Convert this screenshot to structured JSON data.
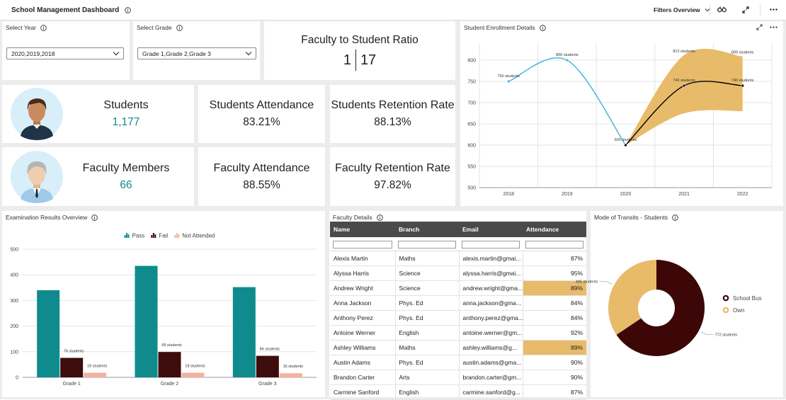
{
  "header": {
    "title": "School Management Dashboard",
    "filters_button": "Filters Overview"
  },
  "filters": [
    {
      "label": "Select Year",
      "value": "2020,2019,2018"
    },
    {
      "label": "Select Grade",
      "value": "Grade 1,Grade 2,Grade 3"
    }
  ],
  "ratio": {
    "title": "Faculty to Student Ratio",
    "left": 1,
    "right": 17
  },
  "kpis": [
    {
      "title": "Students",
      "value": "1,177"
    },
    {
      "title": "Students Attendance",
      "value": "83.21%"
    },
    {
      "title": "Students Retention Rate",
      "value": "88.13%"
    },
    {
      "title": "Faculty Members",
      "value": "66"
    },
    {
      "title": "Faculty Attendance",
      "value": "88.55%"
    },
    {
      "title": "Faculty Retention Rate",
      "value": "97.82%"
    }
  ],
  "table": {
    "title": "Faculty Details",
    "columns": [
      "Name",
      "Branch",
      "Email",
      "Attendance"
    ],
    "rows": [
      [
        "Alexis Martin",
        "Maths",
        "alexis.martin@gmai...",
        "87%"
      ],
      [
        "Alyssa Harris",
        "Science",
        "alyssa.harris@gmai...",
        "95%"
      ],
      [
        "Andrew Wright",
        "Science",
        "andrew.wright@gma...",
        "89%"
      ],
      [
        "Anna Jackson",
        "Phys. Ed",
        "anna.jackson@gma...",
        "84%"
      ],
      [
        "Anthony Perez",
        "Phys. Ed",
        "anthony.perez@gma...",
        "84%"
      ],
      [
        "Antoine Werner",
        "English",
        "antoine.werner@gm...",
        "92%"
      ],
      [
        "Ashley Williams",
        "Maths",
        "ashley.williams@g...",
        "89%"
      ],
      [
        "Austin Adams",
        "Phys. Ed",
        "austin.adams@gma...",
        "90%"
      ],
      [
        "Brandon Carter",
        "Arts",
        "brandon.carter@gm...",
        "90%"
      ],
      [
        "Carmine Sanford",
        "English",
        "carmine.sanford@g...",
        "87%"
      ]
    ]
  },
  "chart_data": [
    {
      "type": "line",
      "title": "Student Enrollment Details",
      "categories": [
        "2018",
        "2019",
        "2020",
        "2021",
        "2022"
      ],
      "series": [
        {
          "color": "#3bb3d6",
          "values": [
            750,
            800,
            600,
            null,
            null
          ],
          "value_labels": [
            "750 students",
            "800 students",
            "600 students",
            null,
            null
          ]
        },
        {
          "color": "#000000",
          "values": [
            null,
            null,
            600,
            740,
            740
          ],
          "value_labels": [
            null,
            null,
            null,
            "740 students",
            "740 students"
          ]
        }
      ],
      "band": {
        "color": "#e8bb6a",
        "low": [
          null,
          null,
          600,
          675,
          680
        ],
        "high": [
          null,
          null,
          600,
          812,
          809
        ],
        "value_labels": [
          null,
          null,
          null,
          "812 students",
          "809 students"
        ]
      },
      "ylim": [
        500,
        840
      ],
      "yticks": [
        500,
        550,
        600,
        650,
        700,
        750,
        800
      ],
      "grid": true
    },
    {
      "type": "bar",
      "title": "Examination Results Overview",
      "categories": [
        "Grade 1",
        "Grade 2",
        "Grade 3"
      ],
      "series": [
        {
          "name": "Pass",
          "color": "#0f8b8d",
          "values": [
            340,
            435,
            352
          ]
        },
        {
          "name": "Fail",
          "color": "#3d0c0c",
          "values": [
            76,
            99,
            84
          ],
          "value_labels": [
            "76 students",
            "99 students",
            "84 students"
          ]
        },
        {
          "name": "Not Attended",
          "color": "#f2b39e",
          "values": [
            18,
            18,
            16
          ],
          "value_labels": [
            "18 students",
            "18 students",
            "16 students"
          ]
        }
      ],
      "ylim": [
        0,
        500
      ],
      "yticks": [
        0,
        100,
        200,
        300,
        400,
        500
      ],
      "grid": true,
      "legend": "top"
    },
    {
      "type": "pie",
      "title": "Mode of Transits - Students",
      "categories": [
        "School Bus",
        "Own"
      ],
      "values": [
        772,
        405
      ],
      "value_labels": [
        "772 students",
        "405 students"
      ],
      "colors": [
        "#3d0707",
        "#e8bb6a"
      ],
      "donut": true,
      "legend": "right"
    }
  ]
}
